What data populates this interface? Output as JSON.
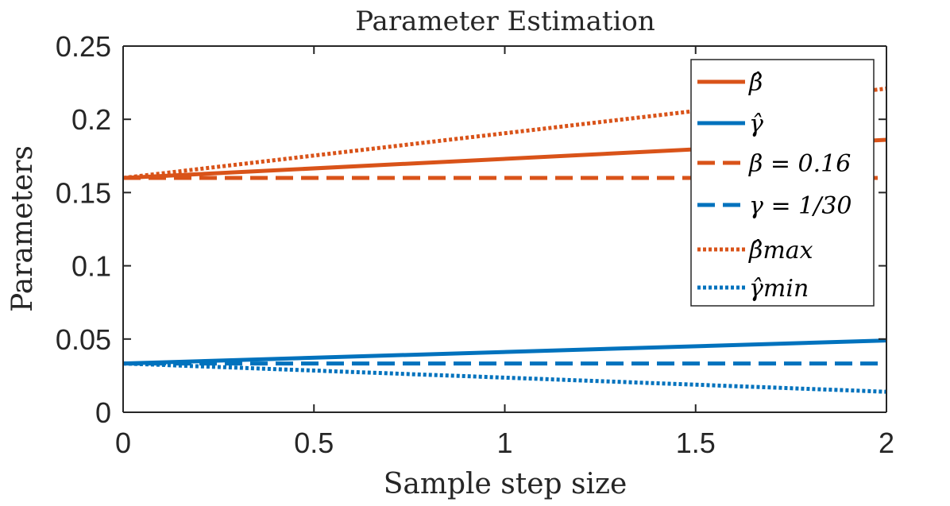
{
  "chart_data": {
    "type": "line",
    "title": "Parameter Estimation",
    "xlabel": "Sample step size",
    "ylabel": "Parameters",
    "xlim": [
      0,
      2
    ],
    "ylim": [
      0,
      0.25
    ],
    "xticks": [
      0,
      0.5,
      1,
      1.5,
      2
    ],
    "xtick_labels": [
      "0",
      "0.5",
      "1",
      "1.5",
      "2"
    ],
    "yticks": [
      0,
      0.05,
      0.1,
      0.15,
      0.2,
      0.25
    ],
    "ytick_labels": [
      "0",
      "0.05",
      "0.1",
      "0.15",
      "0.2",
      "0.25"
    ],
    "grid": false,
    "legend_position": "top-right",
    "series": [
      {
        "name": "beta-hat",
        "legend_label": "β̂",
        "style": "solid",
        "color": "#D95319",
        "x": [
          0,
          2
        ],
        "values": [
          0.16,
          0.186
        ]
      },
      {
        "name": "gamma-hat",
        "legend_label": "γ̂",
        "style": "solid",
        "color": "#0072BD",
        "x": [
          0,
          2
        ],
        "values": [
          0.0333,
          0.049
        ]
      },
      {
        "name": "beta-true",
        "legend_label": "β = 0.16",
        "style": "dashed",
        "color": "#D95319",
        "x": [
          0,
          2
        ],
        "values": [
          0.16,
          0.16
        ]
      },
      {
        "name": "gamma-true",
        "legend_label": "γ = 1/30",
        "style": "dashed",
        "color": "#0072BD",
        "x": [
          0,
          2
        ],
        "values": [
          0.0333,
          0.0333
        ]
      },
      {
        "name": "beta-hat-max",
        "legend_label": "β̂max",
        "style": "dotted",
        "color": "#D95319",
        "x": [
          0,
          2
        ],
        "values": [
          0.16,
          0.221
        ]
      },
      {
        "name": "gamma-hat-min",
        "legend_label": "γ̂min",
        "style": "dotted",
        "color": "#0072BD",
        "x": [
          0,
          2
        ],
        "values": [
          0.0333,
          0.014
        ]
      }
    ]
  }
}
